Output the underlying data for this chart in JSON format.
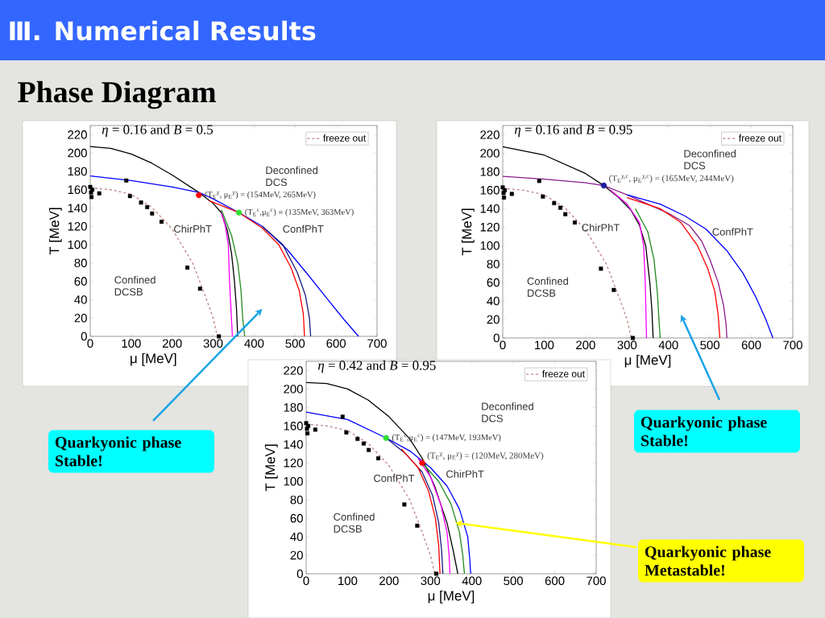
{
  "chart_data": [
    {
      "type": "line",
      "title": "*η* = 0.16 and *B* = 0.5",
      "xlabel": "μ [MeV]",
      "ylabel": "T [MeV]",
      "xlim": [
        0,
        700
      ],
      "ylim": [
        0,
        230
      ],
      "xticks": [
        0,
        100,
        200,
        300,
        400,
        500,
        600,
        700
      ],
      "yticks": [
        0,
        20,
        40,
        60,
        80,
        100,
        120,
        140,
        160,
        180,
        200,
        220
      ],
      "legend": "top right",
      "series": [
        {
          "color": "#000000",
          "x": [
            0,
            50,
            100,
            150,
            200,
            265,
            300,
            320,
            335,
            345,
            352,
            357,
            360
          ],
          "values": [
            207,
            205,
            199,
            189,
            176,
            157,
            145,
            135,
            115,
            90,
            60,
            30,
            0
          ]
        },
        {
          "color": "#0000ff",
          "x": [
            0,
            100,
            200,
            265,
            300,
            363,
            420,
            480,
            530,
            580,
            620,
            655
          ],
          "values": [
            175,
            170,
            163,
            157,
            150,
            135,
            120,
            95,
            68,
            40,
            18,
            0
          ]
        },
        {
          "color": "#ff00ff",
          "x": [
            320,
            330,
            337,
            340,
            344,
            347
          ],
          "values": [
            135,
            120,
            100,
            60,
            25,
            0
          ]
        },
        {
          "color": "#228b22",
          "x": [
            320,
            345,
            360,
            368,
            372,
            377
          ],
          "values": [
            138,
            110,
            80,
            50,
            20,
            0
          ]
        },
        {
          "color": "#ff0000",
          "x": [
            290,
            363,
            420,
            460,
            490,
            510,
            520,
            523
          ],
          "values": [
            148,
            135,
            118,
            100,
            75,
            50,
            25,
            0
          ]
        },
        {
          "color": "#1a1a80",
          "x": [
            420,
            470,
            505,
            525,
            535,
            538
          ],
          "values": [
            120,
            100,
            70,
            45,
            20,
            0
          ]
        },
        {
          "name": "freeze out",
          "color": "#c08080",
          "line_style": "dashed",
          "x": [
            0,
            50,
            100,
            150,
            200,
            250,
            280,
            300,
            310
          ],
          "values": [
            162,
            160,
            155,
            141,
            117,
            80,
            45,
            20,
            0
          ]
        },
        {
          "type": "scatter",
          "marker": "square",
          "color": "#000000",
          "x": [
            0,
            2,
            3,
            5,
            22,
            88,
            97,
            124,
            139,
            151,
            174,
            237,
            268,
            314
          ],
          "values": [
            163,
            157,
            152,
            160,
            156,
            170,
            153,
            146,
            141,
            134,
            125,
            75,
            52,
            0
          ]
        },
        {
          "type": "scatter",
          "marker": "circle",
          "colors": [
            "#ff0000",
            "#33dd33"
          ],
          "x": [
            265,
            363
          ],
          "values": [
            154,
            135
          ]
        }
      ],
      "annotations": [
        "Ⅲ. Numerical Results",
        "Phase Diagram",
        "Deconfined DCS",
        "Confined DCSB",
        "ChirPhT",
        "ConfPhT",
        {
          "text": "(T$_{E}$$^{χ}$, μ$_{E}$$^{χ}$) = (154MeV, 265MeV)",
          "x": 265,
          "y": 154
        },
        {
          "text": "(T$_{E}$$^{c}$,μ$_{E}$$^{c}$) = (135MeV, 363MeV)",
          "x": 363,
          "y": 135
        },
        "Quarkyonic phase Stable!"
      ]
    },
    {
      "type": "line",
      "title": "*η* = 0.16 and *B* = 0.95",
      "xlabel": "μ [MeV]",
      "ylabel": "T [MeV]",
      "xlim": [
        0,
        700
      ],
      "ylim": [
        0,
        230
      ],
      "xticks": [
        0,
        100,
        200,
        300,
        400,
        500,
        600,
        700
      ],
      "yticks": [
        0,
        20,
        40,
        60,
        80,
        100,
        120,
        140,
        160,
        180,
        200,
        220
      ],
      "legend": "top right",
      "series": [
        {
          "color": "#000000",
          "x": [
            0,
            100,
            200,
            244,
            280,
            310,
            330,
            345,
            355,
            360,
            363
          ],
          "values": [
            207,
            198,
            178,
            165,
            152,
            138,
            122,
            100,
            60,
            30,
            0
          ]
        },
        {
          "color": "#8b1a8b",
          "x": [
            0,
            100,
            200,
            244,
            300,
            350,
            400,
            450,
            480,
            500,
            520,
            533,
            539,
            541
          ],
          "values": [
            175,
            172,
            168,
            165,
            155,
            145,
            135,
            122,
            105,
            85,
            60,
            35,
            15,
            0
          ]
        },
        {
          "color": "#0000ff",
          "x": [
            300,
            380,
            440,
            490,
            540,
            580,
            610,
            635,
            652
          ],
          "values": [
            155,
            145,
            132,
            118,
            95,
            70,
            45,
            20,
            0
          ]
        },
        {
          "color": "#ff00ff",
          "x": [
            260,
            300,
            330,
            340,
            344,
            347
          ],
          "values": [
            160,
            145,
            125,
            100,
            60,
            0
          ]
        },
        {
          "color": "#228b22",
          "x": [
            320,
            350,
            365,
            373,
            377,
            380
          ],
          "values": [
            140,
            115,
            85,
            50,
            20,
            0
          ]
        },
        {
          "color": "#ff0000",
          "x": [
            300,
            380,
            430,
            470,
            495,
            512,
            520,
            524
          ],
          "values": [
            152,
            140,
            125,
            100,
            75,
            50,
            25,
            0
          ]
        },
        {
          "name": "freeze out",
          "color": "#c08080",
          "line_style": "dashed",
          "x": [
            0,
            50,
            100,
            150,
            200,
            250,
            280,
            300,
            310
          ],
          "values": [
            162,
            160,
            155,
            141,
            117,
            80,
            45,
            20,
            0
          ]
        },
        {
          "type": "scatter",
          "marker": "square",
          "color": "#000000",
          "x": [
            0,
            2,
            3,
            5,
            22,
            88,
            97,
            124,
            139,
            151,
            174,
            237,
            268,
            314
          ],
          "values": [
            163,
            157,
            152,
            160,
            156,
            170,
            153,
            146,
            141,
            134,
            125,
            75,
            52,
            0
          ]
        },
        {
          "type": "scatter",
          "marker": "circle",
          "colors": [
            "#1a1aa0"
          ],
          "x": [
            244
          ],
          "values": [
            165
          ]
        }
      ],
      "annotations": [
        "Deconfined DCS",
        "Confined DCSB",
        "ChirPhT",
        "ConfPhT",
        {
          "text": "(T$_{E}$$^{χ,c}$, μ$_{E}$$^{χ,c}$) = (165MeV, 244MeV)",
          "x": 244,
          "y": 165
        },
        "Quarkyonic phase Stable!"
      ]
    },
    {
      "type": "line",
      "title": "*η* = 0.42 and *B* = 0.95",
      "xlabel": "μ [MeV]",
      "ylabel": "T [MeV]",
      "xlim": [
        0,
        700
      ],
      "ylim": [
        0,
        230
      ],
      "xticks": [
        0,
        100,
        200,
        300,
        400,
        500,
        600,
        700
      ],
      "yticks": [
        0,
        20,
        40,
        60,
        80,
        100,
        120,
        140,
        160,
        180,
        200,
        220
      ],
      "legend": "top right",
      "series": [
        {
          "color": "#000000",
          "x": [
            0,
            50,
            100,
            150,
            200,
            250,
            280,
            310,
            340,
            355,
            366
          ],
          "values": [
            207,
            206,
            200,
            188,
            170,
            146,
            125,
            95,
            55,
            25,
            0
          ]
        },
        {
          "color": "#0000ff",
          "x": [
            0,
            100,
            193,
            250,
            300,
            340,
            370,
            390,
            395,
            397
          ],
          "values": [
            175,
            167,
            147,
            133,
            115,
            95,
            70,
            40,
            15,
            0
          ]
        },
        {
          "color": "#1a1a80",
          "x": [
            193,
            240,
            280,
            305,
            320,
            327,
            330
          ],
          "values": [
            147,
            130,
            110,
            85,
            55,
            25,
            0
          ]
        },
        {
          "color": "#ff0000",
          "x": [
            230,
            270,
            295,
            312,
            320,
            323
          ],
          "values": [
            135,
            115,
            90,
            60,
            30,
            0
          ]
        },
        {
          "color": "#ff00ff",
          "x": [
            270,
            300,
            325,
            340,
            345,
            347
          ],
          "values": [
            125,
            105,
            75,
            45,
            20,
            0
          ]
        },
        {
          "color": "#228b22",
          "x": [
            280,
            320,
            350,
            370,
            378,
            382
          ],
          "values": [
            120,
            100,
            75,
            45,
            20,
            0
          ]
        },
        {
          "name": "freeze out",
          "color": "#c08080",
          "line_style": "dashed",
          "x": [
            0,
            50,
            100,
            150,
            200,
            250,
            280,
            300,
            310
          ],
          "values": [
            162,
            160,
            155,
            141,
            117,
            80,
            45,
            20,
            0
          ]
        },
        {
          "type": "scatter",
          "marker": "square",
          "color": "#000000",
          "x": [
            0,
            2,
            3,
            5,
            22,
            88,
            97,
            124,
            139,
            151,
            174,
            237,
            268,
            314
          ],
          "values": [
            163,
            157,
            152,
            160,
            156,
            170,
            153,
            146,
            141,
            134,
            125,
            75,
            52,
            0
          ]
        },
        {
          "type": "scatter",
          "marker": "circle",
          "colors": [
            "#33dd33",
            "#ff0000"
          ],
          "x": [
            193,
            280
          ],
          "values": [
            147,
            120
          ]
        }
      ],
      "annotations": [
        "Deconfined DCS",
        "Confined DCSB",
        "ChirPhT",
        "ConfPhT",
        {
          "text": "(T$_{E}$$^{c}$,μ$_{E}$$^{c}$) = (147MeV, 193MeV)",
          "x": 193,
          "y": 147
        },
        {
          "text": "(T$_{E}$$^{χ}$, μ$_{E}$$^{χ}$) = (120MeV, 280MeV)",
          "x": 280,
          "y": 120
        },
        "Quarkyonic phase Metastable!"
      ]
    }
  ]
}
